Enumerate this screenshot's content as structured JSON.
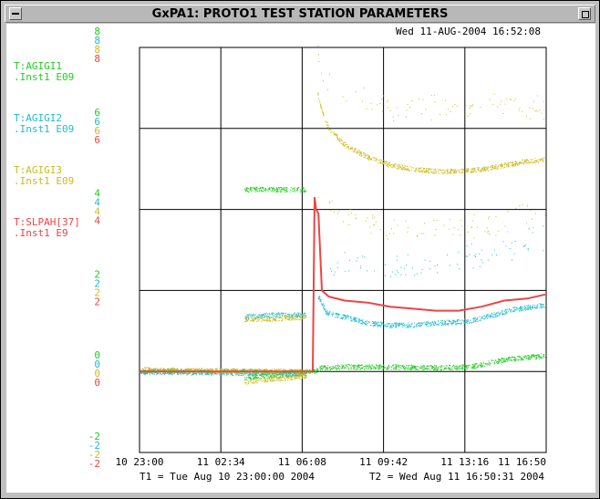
{
  "window": {
    "title": "GxPA1: PROTO1  TEST STATION PARAMETERS"
  },
  "chart_data": {
    "type": "scatter",
    "timestamp": "Wed 11-AUG-2004 16:52:08",
    "x_ticks": [
      "10 23:00",
      "11 02:34",
      "11 06:08",
      "11 09:42",
      "11 13:16",
      "11 16:50"
    ],
    "t1_label": "T1 = Tue Aug 10 23:00:00 2004",
    "t2_label": "T2 = Wed Aug 11 16:50:31 2004",
    "xlim": [
      0,
      17.842
    ],
    "ylim": [
      -2,
      8
    ],
    "grid": true,
    "series": [
      {
        "name": "T:AGIGI1",
        "unit": ".Inst1  E09",
        "color": "#22cc22",
        "ticks": [
          "8",
          "6",
          "4",
          "2",
          "0",
          "-2"
        ]
      },
      {
        "name": "T:AGIGI2",
        "unit": ".Inst1  E09",
        "color": "#22bbcc",
        "ticks": [
          "8",
          "6",
          "4",
          "2",
          "0",
          "-2"
        ]
      },
      {
        "name": "T:AGIGI3",
        "unit": ".Inst1  E09",
        "color": "#ccbb22",
        "ticks": [
          "8",
          "6",
          "4",
          "2",
          "0",
          "-2"
        ]
      },
      {
        "name": "T:SLPAH[37]",
        "unit": ".Inst1  E9",
        "color": "#ee4444",
        "ticks": [
          "8",
          "6",
          "4",
          "2",
          "0",
          "-2"
        ]
      }
    ],
    "traces": [
      {
        "series": "T:AGIGI1",
        "kind": "band",
        "points": [
          [
            0,
            0.02
          ],
          [
            7.3,
            0.0
          ],
          [
            7.6,
            0.0
          ],
          [
            8.0,
            0.1
          ],
          [
            9,
            0.12
          ],
          [
            11,
            0.12
          ],
          [
            13,
            0.1
          ],
          [
            14.5,
            0.12
          ],
          [
            16,
            0.3
          ],
          [
            17.8,
            0.4
          ]
        ]
      },
      {
        "series": "T:AGIGI1",
        "kind": "band",
        "points": [
          [
            4.6,
            4.5
          ],
          [
            5.5,
            4.5
          ],
          [
            6.6,
            4.5
          ],
          [
            7.3,
            4.5
          ]
        ]
      },
      {
        "series": "T:AGIGI1",
        "kind": "band",
        "points": [
          [
            4.6,
            -0.15
          ],
          [
            5.5,
            -0.1
          ],
          [
            7.3,
            -0.05
          ]
        ]
      },
      {
        "series": "T:AGIGI2",
        "kind": "band",
        "points": [
          [
            0,
            0.0
          ],
          [
            7.3,
            -0.05
          ]
        ]
      },
      {
        "series": "T:AGIGI2",
        "kind": "band",
        "points": [
          [
            4.6,
            1.35
          ],
          [
            5.5,
            1.4
          ],
          [
            6.6,
            1.4
          ],
          [
            7.3,
            1.4
          ]
        ]
      },
      {
        "series": "T:AGIGI2",
        "kind": "band",
        "points": [
          [
            7.8,
            1.9
          ],
          [
            8.2,
            1.45
          ],
          [
            9,
            1.35
          ],
          [
            10,
            1.2
          ],
          [
            11,
            1.15
          ],
          [
            12,
            1.15
          ],
          [
            13,
            1.2
          ],
          [
            14.5,
            1.25
          ],
          [
            15.5,
            1.4
          ],
          [
            16.5,
            1.55
          ],
          [
            17.8,
            1.65
          ]
        ]
      },
      {
        "series": "T:AGIGI2",
        "kind": "sparse",
        "points": [
          [
            8.3,
            2.7
          ],
          [
            10,
            2.6
          ],
          [
            11.5,
            2.6
          ],
          [
            13,
            2.7
          ],
          [
            14,
            2.75
          ],
          [
            15,
            2.9
          ],
          [
            16.5,
            3.1
          ],
          [
            17.8,
            3.3
          ]
        ]
      },
      {
        "series": "T:AGIGI3",
        "kind": "band",
        "points": [
          [
            0,
            0.05
          ],
          [
            7.3,
            0.0
          ]
        ]
      },
      {
        "series": "T:AGIGI3",
        "kind": "band",
        "points": [
          [
            4.6,
            -0.25
          ],
          [
            5.5,
            -0.2
          ],
          [
            7.3,
            -0.1
          ]
        ]
      },
      {
        "series": "T:AGIGI3",
        "kind": "band",
        "points": [
          [
            4.6,
            1.3
          ],
          [
            5.5,
            1.3
          ],
          [
            7.3,
            1.35
          ]
        ]
      },
      {
        "series": "T:AGIGI3",
        "kind": "band",
        "points": [
          [
            7.8,
            6.9
          ],
          [
            8.0,
            6.4
          ],
          [
            8.3,
            6.0
          ],
          [
            9,
            5.6
          ],
          [
            10,
            5.3
          ],
          [
            11,
            5.1
          ],
          [
            12,
            5.0
          ],
          [
            13,
            4.95
          ],
          [
            14,
            4.95
          ],
          [
            15,
            5.0
          ],
          [
            16,
            5.1
          ],
          [
            17,
            5.2
          ],
          [
            17.8,
            5.25
          ]
        ]
      },
      {
        "series": "T:AGIGI3",
        "kind": "sparse",
        "points": [
          [
            7.8,
            8.0
          ],
          [
            8.0,
            7.5
          ],
          [
            8.5,
            7.0
          ],
          [
            9,
            6.9
          ],
          [
            10,
            6.7
          ],
          [
            11,
            6.55
          ],
          [
            12,
            6.5
          ],
          [
            14,
            6.5
          ],
          [
            16,
            6.55
          ],
          [
            17.8,
            6.6
          ]
        ]
      },
      {
        "series": "T:AGIGI3",
        "kind": "sparse",
        "points": [
          [
            7.8,
            4.4
          ],
          [
            8.2,
            4.2
          ],
          [
            9,
            4.0
          ],
          [
            10,
            3.7
          ],
          [
            11,
            3.55
          ],
          [
            12,
            3.5
          ],
          [
            13,
            3.5
          ],
          [
            14,
            3.55
          ],
          [
            15,
            3.6
          ],
          [
            16,
            3.75
          ],
          [
            17.8,
            3.85
          ]
        ]
      },
      {
        "series": "T:SLPAH[37]",
        "kind": "line",
        "points": [
          [
            0,
            0.0
          ],
          [
            7.6,
            0.0
          ],
          [
            7.68,
            4.3
          ],
          [
            7.75,
            4.0
          ],
          [
            7.85,
            3.9
          ],
          [
            8.0,
            2.0
          ],
          [
            8.3,
            1.85
          ],
          [
            9,
            1.75
          ],
          [
            10,
            1.7
          ],
          [
            11,
            1.6
          ],
          [
            12,
            1.55
          ],
          [
            13,
            1.5
          ],
          [
            14,
            1.5
          ],
          [
            15,
            1.6
          ],
          [
            16,
            1.75
          ],
          [
            17,
            1.8
          ],
          [
            17.8,
            1.9
          ]
        ]
      }
    ]
  }
}
